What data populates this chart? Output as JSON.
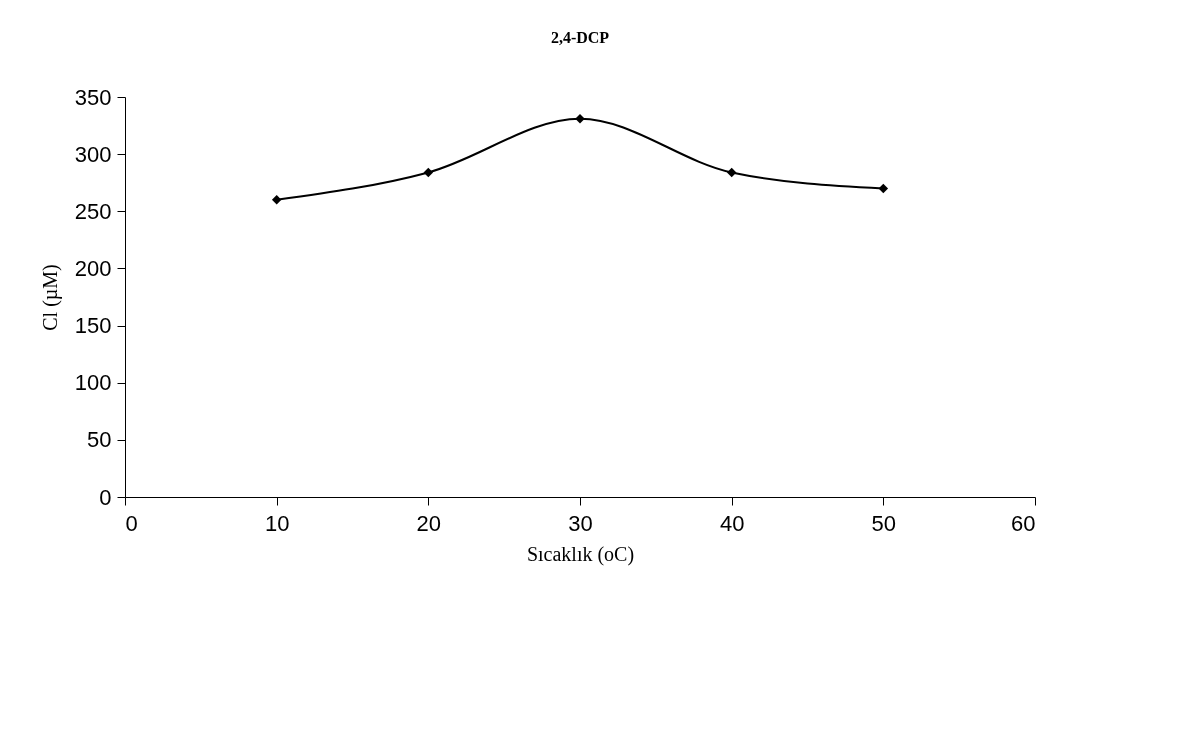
{
  "chart_data": {
    "type": "line",
    "title": "2,4-DCP",
    "xlabel": "Sıcaklık (oC)",
    "ylabel": "Cl (µM)",
    "x": [
      10,
      20,
      30,
      40,
      50
    ],
    "series": [
      {
        "color": "#000000",
        "values": [
          260,
          284,
          331,
          284,
          270
        ]
      }
    ],
    "xlim": [
      0,
      60
    ],
    "xticks": [
      0,
      10,
      20,
      30,
      40,
      50,
      60
    ],
    "ylim": [
      0,
      350
    ],
    "yticks": [
      0,
      50,
      100,
      150,
      200,
      250,
      300,
      350
    ],
    "grid": false,
    "legend": false,
    "marker": "diamond",
    "line_style": "solid"
  }
}
